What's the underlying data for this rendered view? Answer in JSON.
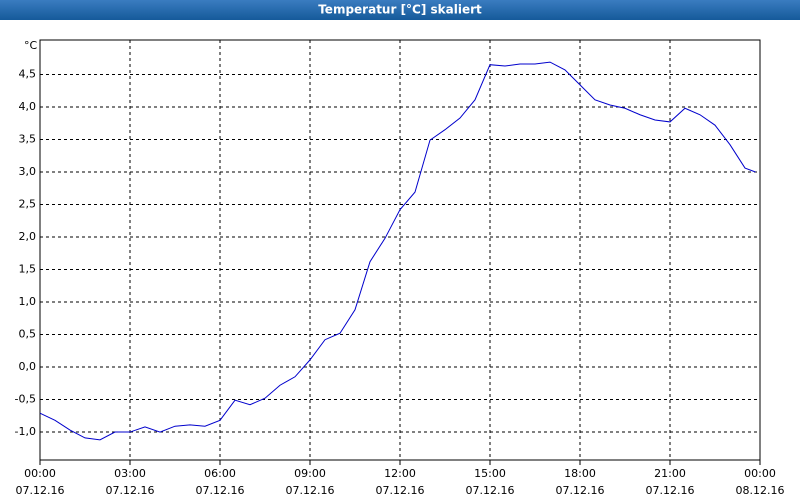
{
  "chart_data": {
    "type": "line",
    "title": "Temperatur [°C] skaliert",
    "y_unit": "°C",
    "x": [
      0,
      0.5,
      1,
      1.5,
      2,
      2.5,
      3,
      3.5,
      4,
      4.5,
      5,
      5.5,
      6,
      6.5,
      7,
      7.5,
      8,
      8.5,
      9,
      9.5,
      10,
      10.5,
      11,
      11.5,
      12,
      12.5,
      13,
      13.5,
      14,
      14.5,
      15,
      15.5,
      16,
      16.5,
      17,
      17.5,
      18,
      18.5,
      19,
      19.5,
      20,
      20.5,
      21,
      21.5,
      22,
      22.5,
      23,
      23.5,
      23.85
    ],
    "series": [
      {
        "name": "Temperatur",
        "color": "#0000cc",
        "values": [
          -0.71,
          -0.82,
          -0.97,
          -1.09,
          -1.12,
          -1.0,
          -1.0,
          -0.92,
          -1.0,
          -0.91,
          -0.89,
          -0.91,
          -0.82,
          -0.51,
          -0.58,
          -0.48,
          -0.28,
          -0.15,
          0.11,
          0.42,
          0.52,
          0.88,
          1.62,
          1.98,
          2.42,
          2.69,
          3.49,
          3.65,
          3.83,
          4.11,
          4.65,
          4.63,
          4.66,
          4.66,
          4.69,
          4.57,
          4.34,
          4.11,
          4.03,
          3.98,
          3.88,
          3.8,
          3.77,
          3.98,
          3.88,
          3.72,
          3.42,
          3.06,
          3.0
        ]
      }
    ],
    "xlim": [
      0,
      24
    ],
    "ylim": [
      -1.43,
      5.03
    ],
    "xticks": [
      {
        "value": 0,
        "label": "00:00"
      },
      {
        "value": 3,
        "label": "03:00"
      },
      {
        "value": 6,
        "label": "06:00"
      },
      {
        "value": 9,
        "label": "09:00"
      },
      {
        "value": 12,
        "label": "12:00"
      },
      {
        "value": 15,
        "label": "15:00"
      },
      {
        "value": 18,
        "label": "18:00"
      },
      {
        "value": 21,
        "label": "21:00"
      },
      {
        "value": 24,
        "label": "00:00"
      }
    ],
    "xtick_dates": [
      "07.12.16",
      "07.12.16",
      "07.12.16",
      "07.12.16",
      "07.12.16",
      "07.12.16",
      "07.12.16",
      "07.12.16",
      "08.12.16"
    ],
    "yticks": [
      {
        "value": -1,
        "label": "-1,0"
      },
      {
        "value": -0.5,
        "label": "-0,5"
      },
      {
        "value": 0,
        "label": "0,0"
      },
      {
        "value": 0.5,
        "label": "0,5"
      },
      {
        "value": 1,
        "label": "1,0"
      },
      {
        "value": 1.5,
        "label": "1,5"
      },
      {
        "value": 2,
        "label": "2,0"
      },
      {
        "value": 2.5,
        "label": "2,5"
      },
      {
        "value": 3,
        "label": "3,0"
      },
      {
        "value": 3.5,
        "label": "3,5"
      },
      {
        "value": 4,
        "label": "4,0"
      },
      {
        "value": 4.5,
        "label": "4,5"
      }
    ],
    "grid": true
  }
}
